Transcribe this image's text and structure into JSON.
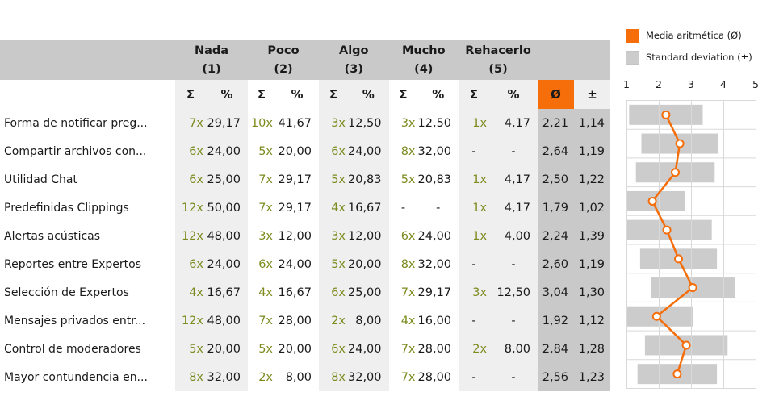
{
  "colors": {
    "accent_orange": "#f56e0a",
    "header_gray": "#c9c9c9",
    "stripe_light": "#efefef",
    "bar_gray": "#cccccc",
    "count_olive": "#7d8b1e",
    "grid_line": "#d9d9d9"
  },
  "table": {
    "groups": [
      {
        "label": "Nada",
        "number": "(1)"
      },
      {
        "label": "Poco",
        "number": "(2)"
      },
      {
        "label": "Algo",
        "number": "(3)"
      },
      {
        "label": "Mucho",
        "number": "(4)"
      },
      {
        "label": "Rehacerlo",
        "number": "(5)"
      }
    ],
    "sub": {
      "sum": "Σ",
      "pct": "%",
      "mean": "Ø",
      "sd": "±"
    },
    "rows": [
      {
        "label": "Forma de notificar preg...",
        "cells": [
          [
            "7x",
            "29,17"
          ],
          [
            "10x",
            "41,67"
          ],
          [
            "3x",
            "12,50"
          ],
          [
            "3x",
            "12,50"
          ],
          [
            "1x",
            "4,17"
          ]
        ],
        "mean": "2,21",
        "sd": "1,14"
      },
      {
        "label": "Compartir archivos con...",
        "cells": [
          [
            "6x",
            "24,00"
          ],
          [
            "5x",
            "20,00"
          ],
          [
            "6x",
            "24,00"
          ],
          [
            "8x",
            "32,00"
          ],
          [
            "-",
            "-"
          ]
        ],
        "mean": "2,64",
        "sd": "1,19"
      },
      {
        "label": "Utilidad Chat",
        "cells": [
          [
            "6x",
            "25,00"
          ],
          [
            "7x",
            "29,17"
          ],
          [
            "5x",
            "20,83"
          ],
          [
            "5x",
            "20,83"
          ],
          [
            "1x",
            "4,17"
          ]
        ],
        "mean": "2,50",
        "sd": "1,22"
      },
      {
        "label": "Predefinidas Clippings",
        "cells": [
          [
            "12x",
            "50,00"
          ],
          [
            "7x",
            "29,17"
          ],
          [
            "4x",
            "16,67"
          ],
          [
            "-",
            "-"
          ],
          [
            "1x",
            "4,17"
          ]
        ],
        "mean": "1,79",
        "sd": "1,02"
      },
      {
        "label": "Alertas acústicas",
        "cells": [
          [
            "12x",
            "48,00"
          ],
          [
            "3x",
            "12,00"
          ],
          [
            "3x",
            "12,00"
          ],
          [
            "6x",
            "24,00"
          ],
          [
            "1x",
            "4,00"
          ]
        ],
        "mean": "2,24",
        "sd": "1,39"
      },
      {
        "label": "Reportes entre Expertos",
        "cells": [
          [
            "6x",
            "24,00"
          ],
          [
            "6x",
            "24,00"
          ],
          [
            "5x",
            "20,00"
          ],
          [
            "8x",
            "32,00"
          ],
          [
            "-",
            "-"
          ]
        ],
        "mean": "2,60",
        "sd": "1,19"
      },
      {
        "label": "Selección de Expertos",
        "cells": [
          [
            "4x",
            "16,67"
          ],
          [
            "4x",
            "16,67"
          ],
          [
            "6x",
            "25,00"
          ],
          [
            "7x",
            "29,17"
          ],
          [
            "3x",
            "12,50"
          ]
        ],
        "mean": "3,04",
        "sd": "1,30"
      },
      {
        "label": "Mensajes privados entr...",
        "cells": [
          [
            "12x",
            "48,00"
          ],
          [
            "7x",
            "28,00"
          ],
          [
            "2x",
            "8,00"
          ],
          [
            "4x",
            "16,00"
          ],
          [
            "-",
            "-"
          ]
        ],
        "mean": "1,92",
        "sd": "1,12"
      },
      {
        "label": "Control de moderadores",
        "cells": [
          [
            "5x",
            "20,00"
          ],
          [
            "5x",
            "20,00"
          ],
          [
            "6x",
            "24,00"
          ],
          [
            "7x",
            "28,00"
          ],
          [
            "2x",
            "8,00"
          ]
        ],
        "mean": "2,84",
        "sd": "1,28"
      },
      {
        "label": "Mayor contundencia en...",
        "cells": [
          [
            "8x",
            "32,00"
          ],
          [
            "2x",
            "8,00"
          ],
          [
            "8x",
            "32,00"
          ],
          [
            "7x",
            "28,00"
          ],
          [
            "-",
            "-"
          ]
        ],
        "mean": "2,56",
        "sd": "1,23"
      }
    ]
  },
  "legend": [
    {
      "key": "mean",
      "label": "Media aritmética (Ø)"
    },
    {
      "key": "sd",
      "label": "Standard deviation (±)"
    }
  ],
  "chart_data": {
    "type": "line",
    "orientation": "vertical-profile",
    "x_ticks": [
      1,
      2,
      3,
      4,
      5
    ],
    "xlim": [
      1,
      5
    ],
    "grid": true,
    "legend_position": "top-right",
    "bar_represents": "mean ± standard deviation, clipped to [1,5]",
    "categories": [
      "Forma de notificar preg...",
      "Compartir archivos con...",
      "Utilidad Chat",
      "Predefinidas Clippings",
      "Alertas acústicas",
      "Reportes entre Expertos",
      "Selección de Expertos",
      "Mensajes privados entr...",
      "Control de moderadores",
      "Mayor contundencia en..."
    ],
    "series": [
      {
        "name": "Media aritmética (Ø)",
        "values": [
          2.21,
          2.64,
          2.5,
          1.79,
          2.24,
          2.6,
          3.04,
          1.92,
          2.84,
          2.56
        ]
      },
      {
        "name": "Standard deviation (±)",
        "values": [
          1.14,
          1.19,
          1.22,
          1.02,
          1.39,
          1.19,
          1.3,
          1.12,
          1.28,
          1.23
        ]
      }
    ]
  }
}
